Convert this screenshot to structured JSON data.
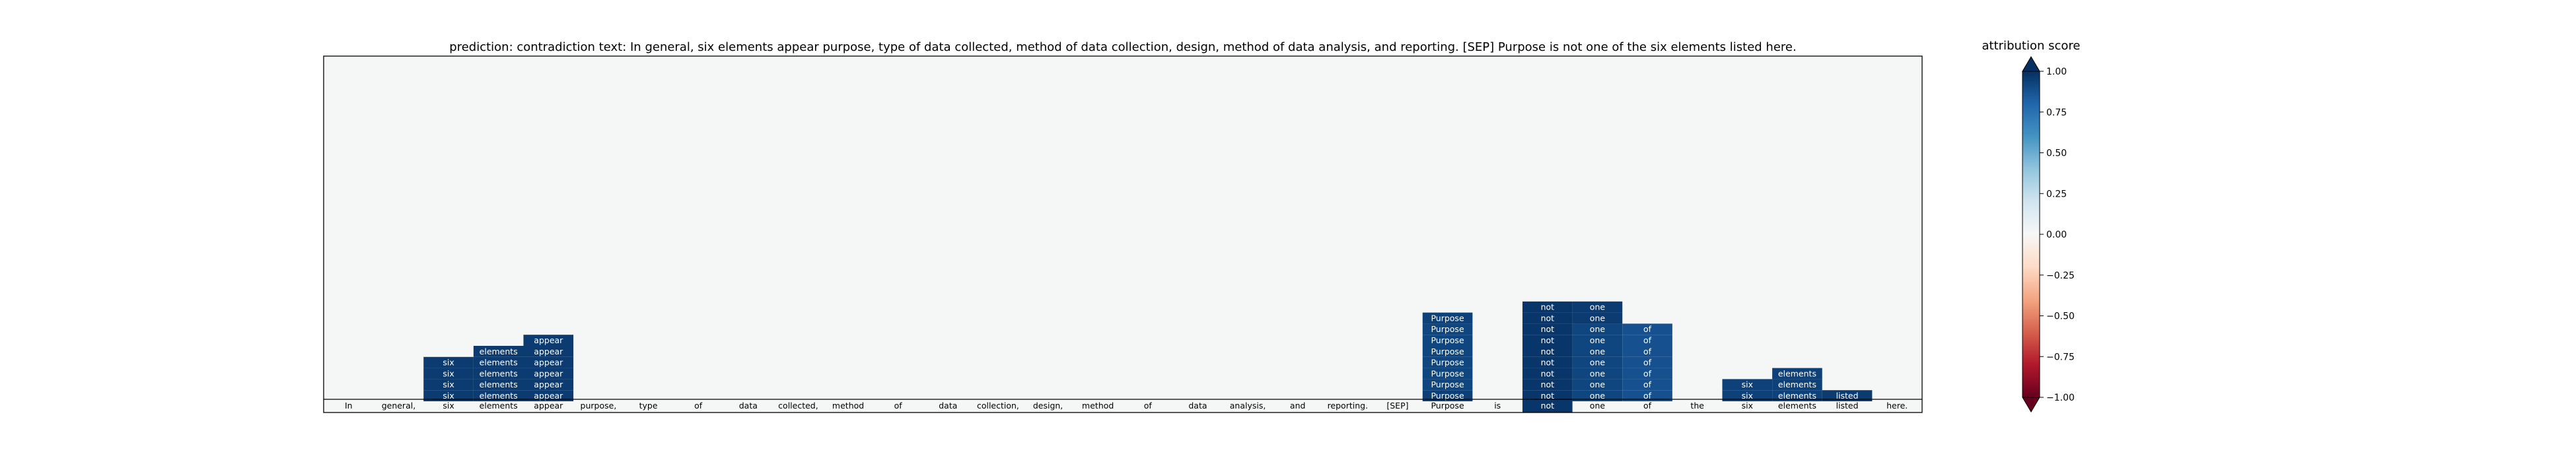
{
  "chart_data": {
    "type": "heatmap",
    "title": "prediction:  contradiction     text:  In general, six elements appear purpose, type of data collected, method of data collection, design, method of data analysis, and reporting. [SEP] Purpose is not one of the six elements listed here.",
    "tokens": [
      "In",
      "general,",
      "six",
      "elements",
      "appear",
      "purpose,",
      "type",
      "of",
      "data",
      "collected,",
      "method",
      "of",
      "data",
      "collection,",
      "design,",
      "method",
      "of",
      "data",
      "analysis,",
      "and",
      "reporting.",
      "[SEP]",
      "Purpose",
      "is",
      "not",
      "one",
      "of",
      "the",
      "six",
      "elements",
      "listed",
      "here."
    ],
    "base_scores": {
      "24": 0.97
    },
    "stacks": [
      {
        "col": 2,
        "label": "six",
        "count": 4,
        "values": [
          0.95,
          0.95,
          0.95,
          0.95
        ]
      },
      {
        "col": 3,
        "label": "elements",
        "count": 5,
        "values": [
          0.95,
          0.95,
          0.95,
          0.95,
          0.95
        ]
      },
      {
        "col": 4,
        "label": "appear",
        "count": 6,
        "values": [
          0.95,
          0.95,
          0.95,
          0.95,
          0.95,
          0.95
        ]
      },
      {
        "col": 22,
        "label": "Purpose",
        "count": 8,
        "values": [
          0.93,
          0.9,
          0.9,
          0.9,
          0.9,
          0.9,
          0.9,
          0.92
        ]
      },
      {
        "col": 24,
        "label": "not",
        "count": 9,
        "values": [
          0.97,
          0.97,
          0.97,
          0.97,
          0.97,
          0.97,
          0.97,
          0.97,
          0.97
        ]
      },
      {
        "col": 25,
        "label": "one",
        "count": 9,
        "values": [
          0.9,
          0.9,
          0.9,
          0.9,
          0.9,
          0.9,
          0.9,
          0.95,
          0.95
        ]
      },
      {
        "col": 26,
        "label": "of",
        "count": 7,
        "values": [
          0.85,
          0.85,
          0.85,
          0.85,
          0.85,
          0.85,
          0.85
        ]
      },
      {
        "col": 28,
        "label": "six",
        "count": 2,
        "values": [
          0.92,
          0.92
        ]
      },
      {
        "col": 29,
        "label": "elements",
        "count": 3,
        "values": [
          0.92,
          0.92,
          0.92
        ]
      },
      {
        "col": 30,
        "label": "listed",
        "count": 1,
        "values": [
          0.95
        ]
      }
    ],
    "colorbar": {
      "label": "attribution score",
      "ticks": [
        "1.00",
        "0.75",
        "0.50",
        "0.25",
        "0.00",
        "−0.25",
        "−0.50",
        "−0.75",
        "−1.00"
      ],
      "range": [
        -1,
        1
      ],
      "colormap": "RdBu"
    },
    "background_color": "#f5f6f6"
  }
}
